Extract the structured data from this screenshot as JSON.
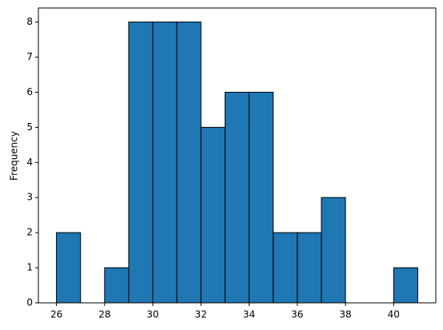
{
  "chart_data": {
    "type": "histogram",
    "y_label": "Frequency",
    "bins": [
      26,
      27,
      28,
      29,
      30,
      31,
      32,
      33,
      34,
      35,
      36,
      37,
      38,
      39,
      40,
      41
    ],
    "values": [
      2,
      0,
      1,
      8,
      8,
      8,
      5,
      6,
      6,
      2,
      2,
      3,
      0,
      0,
      1
    ],
    "color": "#1f77b4",
    "edgecolor": "#000000",
    "xlim": [
      25.25,
      41.75
    ],
    "xticks": [
      26,
      28,
      30,
      32,
      34,
      36,
      38,
      40
    ],
    "ylim": [
      0,
      8.4
    ],
    "yticks": [
      0,
      1,
      2,
      3,
      4,
      5,
      6,
      7,
      8
    ],
    "grid": false
  }
}
